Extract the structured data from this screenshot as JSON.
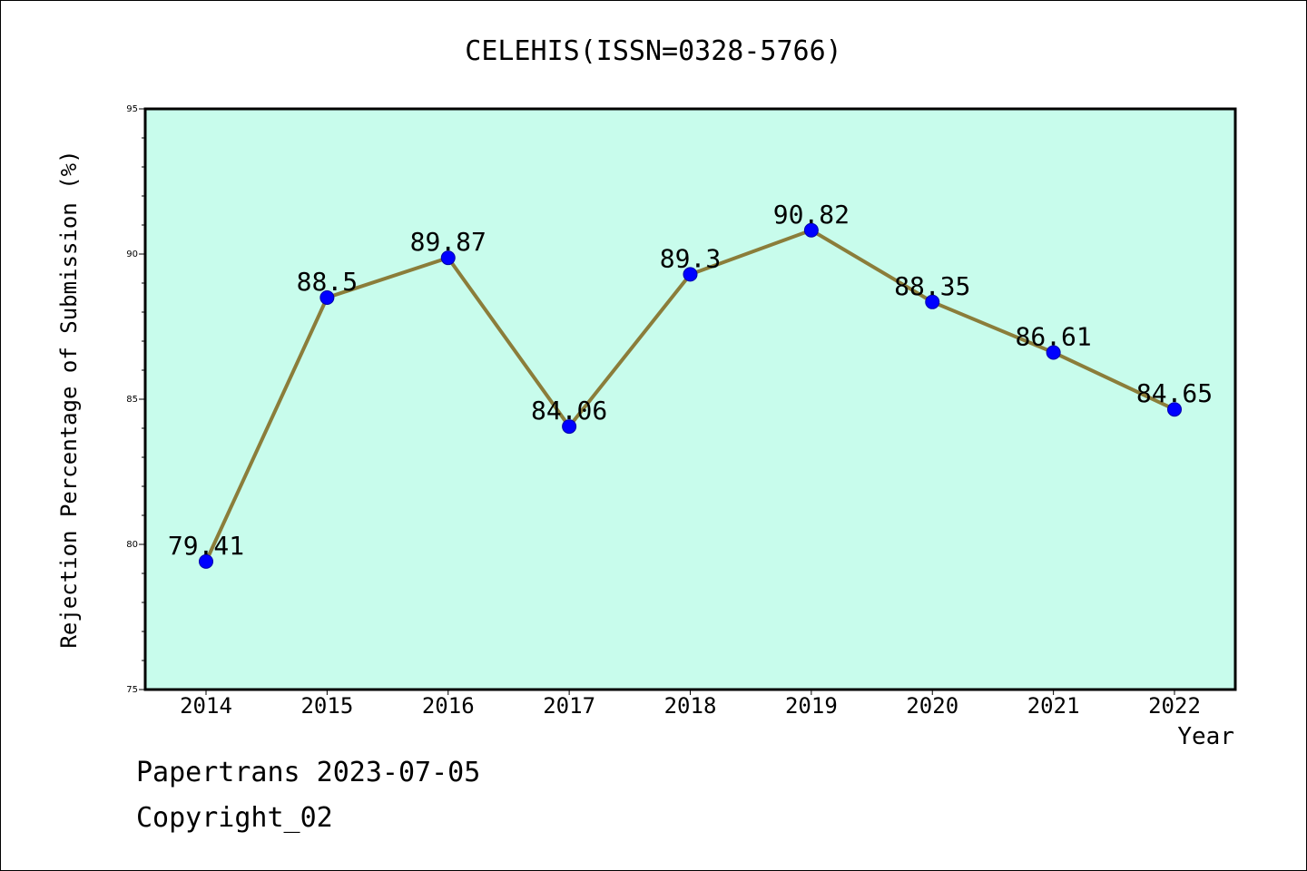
{
  "chart_data": {
    "type": "line",
    "title": "CELEHIS(ISSN=0328-5766)",
    "xlabel": "Year",
    "ylabel": "Rejection Percentage of Submission (%)",
    "categories": [
      "2014",
      "2015",
      "2016",
      "2017",
      "2018",
      "2019",
      "2020",
      "2021",
      "2022"
    ],
    "values": [
      79.41,
      88.5,
      89.87,
      84.06,
      89.3,
      90.82,
      88.35,
      86.61,
      84.65
    ],
    "data_labels": [
      "79.41",
      "88.5",
      "89.87",
      "84.06",
      "89.3",
      "90.82",
      "88.35",
      "86.61",
      "84.65"
    ],
    "ylim": [
      75,
      95
    ],
    "yticks": [
      "75",
      "80",
      "85",
      "90",
      "95"
    ],
    "grid": false,
    "colors": {
      "plot_background": "#c8fcec",
      "line": "#8b7d3a",
      "marker": "#0000ff"
    }
  },
  "footer": {
    "source": "Papertrans 2023-07-05",
    "copyright": "Copyright_02"
  }
}
